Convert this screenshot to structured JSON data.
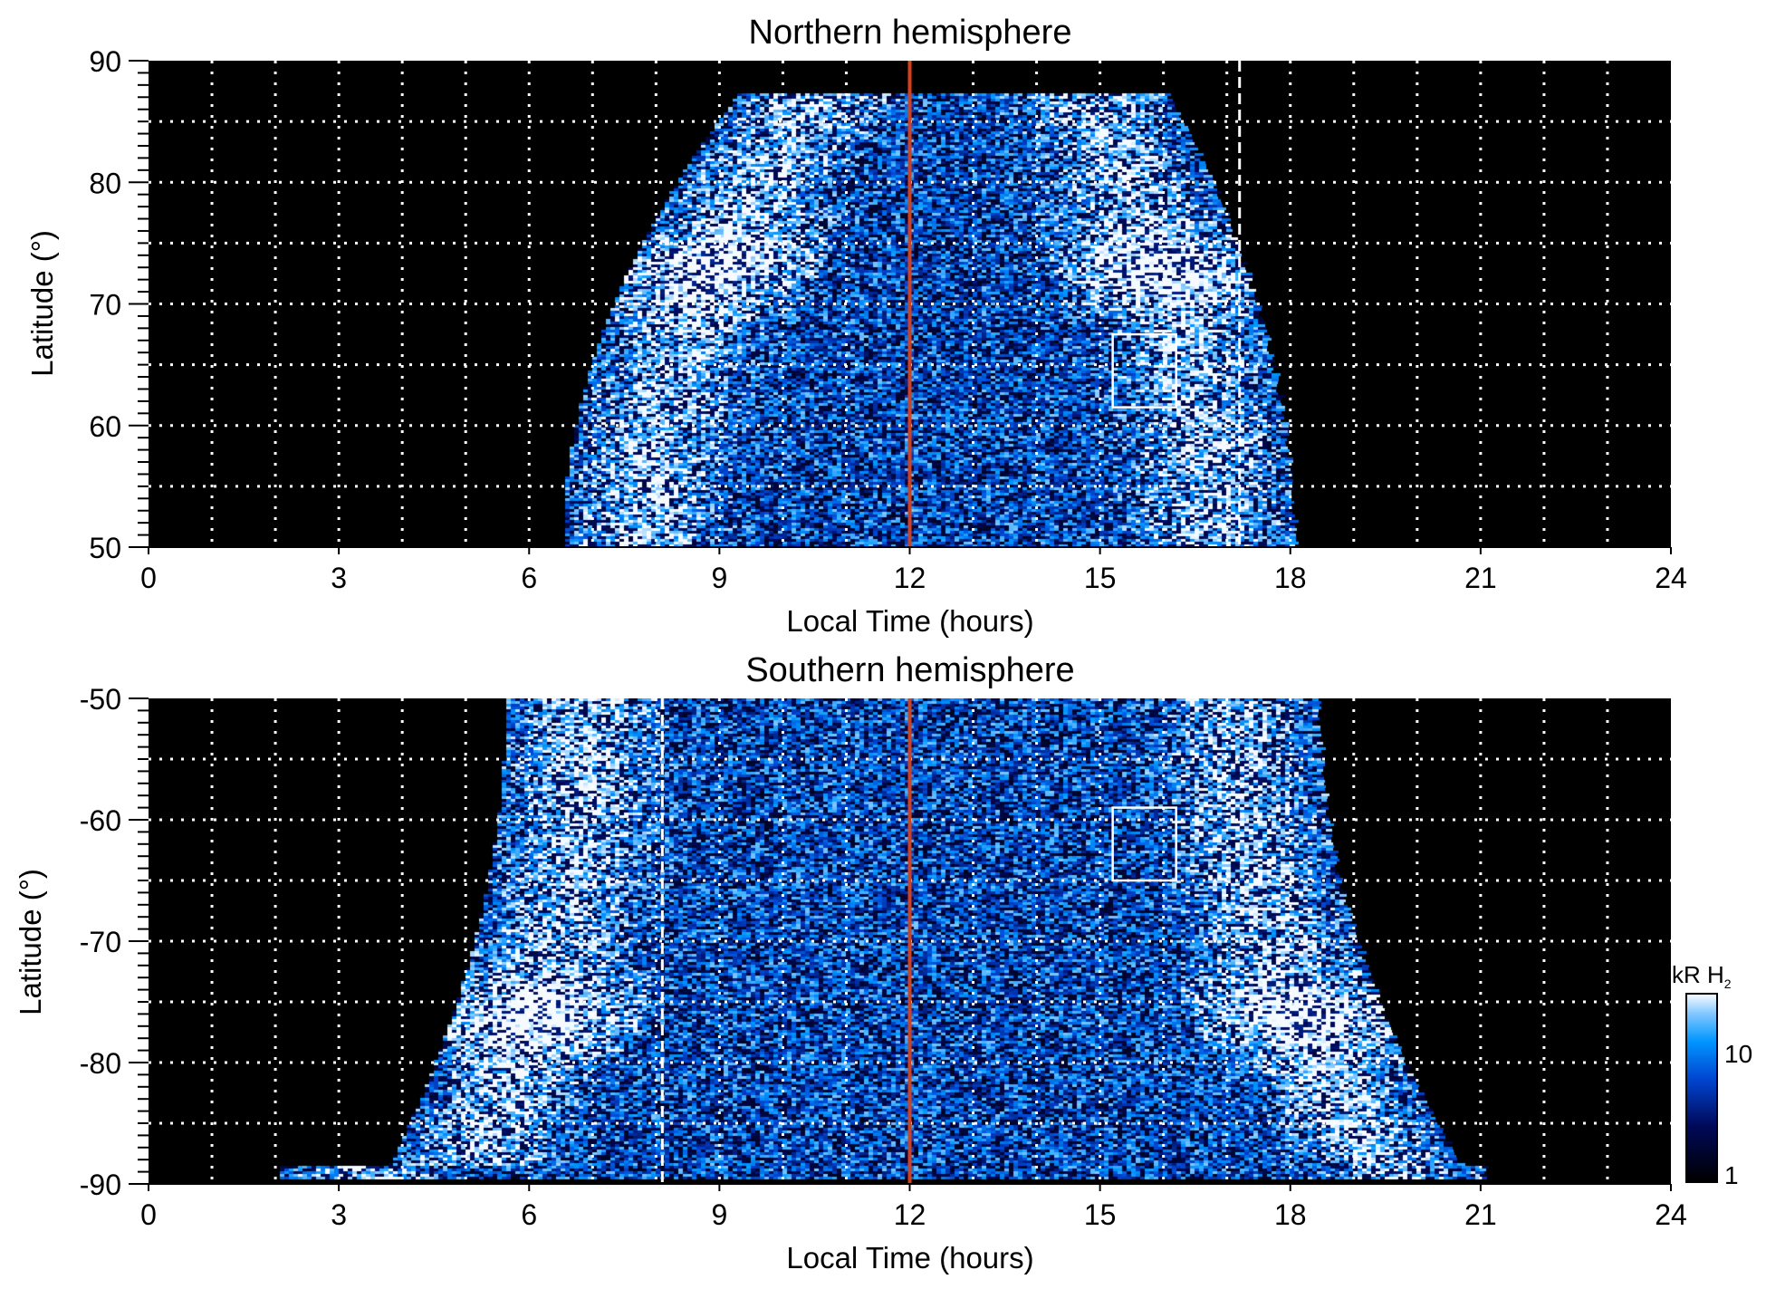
{
  "chart_data": [
    {
      "type": "heatmap",
      "title": "Northern hemisphere",
      "xlabel": "Local Time (hours)",
      "ylabel": "Latitude (°)",
      "xlim": [
        0,
        24
      ],
      "ylim": [
        50,
        90
      ],
      "xticks": [
        "0",
        "3",
        "6",
        "9",
        "12",
        "15",
        "18",
        "21",
        "24"
      ],
      "yticks": [
        "50",
        "60",
        "70",
        "80",
        "90"
      ],
      "ytick_values": [
        50,
        60,
        70,
        80,
        90
      ],
      "grid": true,
      "noon_line_hours": 12,
      "dashed_line_hours": 17.2,
      "box": {
        "lt": [
          15.2,
          16.2
        ],
        "lat": [
          61.5,
          67.5
        ]
      },
      "coverage_note_lt_at_edge": [
        6.5,
        18
      ]
    },
    {
      "type": "heatmap",
      "title": "Southern hemisphere",
      "xlabel": "Local Time (hours)",
      "ylabel": "Latitude (°)",
      "xlim": [
        0,
        24
      ],
      "ylim": [
        -90,
        -50
      ],
      "xticks": [
        "0",
        "3",
        "6",
        "9",
        "12",
        "15",
        "18",
        "21",
        "24"
      ],
      "yticks": [
        "-50",
        "-60",
        "-70",
        "-80",
        "-90"
      ],
      "ytick_values": [
        -50,
        -60,
        -70,
        -80,
        -90
      ],
      "grid": true,
      "noon_line_hours": 12,
      "dashed_line_hours": 8.1,
      "box": {
        "lt": [
          15.2,
          16.2
        ],
        "lat": [
          -65,
          -59
        ]
      }
    }
  ],
  "colorbar": {
    "label": "kR H",
    "label_sub": "2",
    "ticks": [
      "1",
      "10"
    ],
    "range": [
      1,
      30
    ],
    "scale": "log"
  },
  "colors": {
    "noon_line": "#d8401a",
    "background": "#000000"
  }
}
